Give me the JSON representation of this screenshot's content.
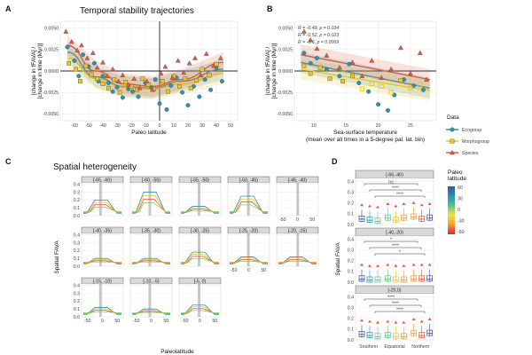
{
  "panels": {
    "a": "A",
    "b": "B",
    "c": "C",
    "d": "D"
  },
  "chart_data": [
    {
      "id": "A",
      "type": "scatter",
      "title": "Temporal stability trajectories",
      "xlabel": "Paleo latitude",
      "ylabel": "[change in fFAVA] /\n[change in time (Myr)]",
      "xlim": [
        -70,
        55
      ],
      "ylim": [
        -0.0058,
        0.0058
      ],
      "xticks": [
        -60,
        -50,
        -40,
        -30,
        -20,
        -10,
        0,
        10,
        20,
        30,
        40,
        50
      ],
      "yticks": [
        -0.005,
        -0.0025,
        0,
        0.0025,
        0.005
      ],
      "ytick_labels": [
        "-0.0050",
        "-0.0025",
        "0.0000",
        "0.0025",
        "0.0050"
      ],
      "series": [
        {
          "name": "Ecogroup",
          "color": "#2a93b0",
          "shape": "circle",
          "points": [
            [
              -65,
              0.0028
            ],
            [
              -60,
              0.0012
            ],
            [
              -57,
              -0.0006
            ],
            [
              -54,
              0.0019
            ],
            [
              -50,
              0.0005
            ],
            [
              -46,
              0.0009
            ],
            [
              -43,
              -0.0012
            ],
            [
              -40,
              -0.0006
            ],
            [
              -36,
              -0.0014
            ],
            [
              -33,
              -0.0024
            ],
            [
              -30,
              -0.0019
            ],
            [
              -26,
              -0.0031
            ],
            [
              -22,
              -0.0021
            ],
            [
              -19,
              -0.0024
            ],
            [
              -15,
              -0.003
            ],
            [
              -10,
              -0.0014
            ],
            [
              -6,
              -0.0019
            ],
            [
              -3,
              -0.001
            ],
            [
              0,
              -0.0038
            ],
            [
              5,
              -0.0045
            ],
            [
              8,
              -0.0017
            ],
            [
              12,
              -0.0008
            ],
            [
              16,
              -0.0025
            ],
            [
              20,
              -0.004
            ],
            [
              24,
              -0.0018
            ],
            [
              28,
              -0.003
            ],
            [
              32,
              -0.001
            ],
            [
              36,
              -0.0022
            ],
            [
              40,
              0.0004
            ],
            [
              44,
              -0.0012
            ]
          ],
          "fit": [
            0.0022,
            -0.0007,
            -0.0018,
            -0.002,
            -0.0012,
            0.0002
          ]
        },
        {
          "name": "Morphogroup",
          "color": "#f0c419",
          "shape": "square",
          "points": [
            [
              -64,
              0.0009
            ],
            [
              -59,
              0.0002
            ],
            [
              -56,
              -0.0012
            ],
            [
              -52,
              0.0006
            ],
            [
              -48,
              -0.0004
            ],
            [
              -44,
              -0.0009
            ],
            [
              -40,
              -0.0015
            ],
            [
              -36,
              -0.002
            ],
            [
              -32,
              -0.001
            ],
            [
              -28,
              -0.0025
            ],
            [
              -24,
              -0.0013
            ],
            [
              -20,
              -0.0018
            ],
            [
              -16,
              -0.0022
            ],
            [
              -12,
              -0.0009
            ],
            [
              -8,
              -0.0016
            ],
            [
              -4,
              -0.0021
            ],
            [
              2,
              -0.0012
            ],
            [
              6,
              -0.0024
            ],
            [
              10,
              -0.0006
            ],
            [
              14,
              -0.0018
            ],
            [
              18,
              -0.0009
            ],
            [
              22,
              -0.002
            ],
            [
              26,
              -0.0011
            ],
            [
              30,
              0.0002
            ],
            [
              35,
              -0.0005
            ],
            [
              40,
              0.0008
            ]
          ],
          "fit": [
            0.0015,
            -0.0009,
            -0.0019,
            -0.0021,
            -0.0015,
            -0.0003
          ]
        },
        {
          "name": "Species",
          "color": "#e05a3c",
          "shape": "triangle",
          "points": [
            [
              -66,
              0.0046
            ],
            [
              -62,
              0.0034
            ],
            [
              -58,
              0.0024
            ],
            [
              -55,
              0.003
            ],
            [
              -51,
              0.0015
            ],
            [
              -47,
              0.0021
            ],
            [
              -44,
              0.0004
            ],
            [
              -40,
              0.001
            ],
            [
              -37,
              -0.0006
            ],
            [
              -33,
              0.0002
            ],
            [
              -29,
              -0.0012
            ],
            [
              -26,
              -0.0005
            ],
            [
              -22,
              -0.0016
            ],
            [
              -18,
              -0.0009
            ],
            [
              -14,
              -0.002
            ],
            [
              -9,
              -0.0012
            ],
            [
              -5,
              -0.0022
            ],
            [
              1,
              -0.0003
            ],
            [
              4,
              0.0005
            ],
            [
              9,
              -0.0008
            ],
            [
              13,
              0.0012
            ],
            [
              17,
              -0.0002
            ],
            [
              21,
              0.0009
            ],
            [
              25,
              0.0015
            ],
            [
              29,
              -0.0005
            ],
            [
              33,
              0.002
            ],
            [
              38,
              0.0006
            ],
            [
              43,
              0.0015
            ]
          ],
          "fit": [
            0.003,
            0.0,
            -0.0015,
            -0.0018,
            -0.001,
            0.001
          ]
        }
      ],
      "fit_x": [
        -65,
        -45,
        -25,
        -5,
        15,
        45
      ]
    },
    {
      "id": "B",
      "type": "scatter",
      "xlabel": "Sea-surface temperature\n(mean over all times in a 5-degree pal. lat. bin)",
      "ylabel": "[change in fFAVA] /\n[change in time (Myr)]",
      "xlim": [
        7,
        29
      ],
      "ylim": [
        -0.0058,
        0.0058
      ],
      "xticks": [
        10,
        15,
        20,
        25
      ],
      "yticks": [
        -0.005,
        -0.0025,
        0,
        0.0025,
        0.005
      ],
      "ytick_labels": [
        "-0.0050",
        "-0.0025",
        "0.0000",
        "0.0025",
        "0.0050"
      ],
      "annotations": [
        {
          "text": "R = -0.49, p = 0.034",
          "color": "#2a93b0"
        },
        {
          "text": "R = -0.52, p = 0.023",
          "color": "#f0c419"
        },
        {
          "text": "R = -0.6, p = 0.0069",
          "color": "#e05a3c"
        }
      ],
      "series": [
        {
          "name": "Ecogroup",
          "color": "#2a93b0",
          "shape": "circle",
          "points": [
            [
              8.5,
              0.0021
            ],
            [
              9.5,
              0.0009
            ],
            [
              10.5,
              0.0015
            ],
            [
              12,
              0.0002
            ],
            [
              14,
              -0.0006
            ],
            [
              15.5,
              0.0008
            ],
            [
              17,
              -0.0014
            ],
            [
              18.5,
              -0.0024
            ],
            [
              20,
              -0.0039
            ],
            [
              21.5,
              -0.0046
            ],
            [
              22.5,
              -0.0028
            ],
            [
              24,
              -0.001
            ],
            [
              25.5,
              -0.0017
            ],
            [
              27,
              -0.0022
            ]
          ],
          "fit": [
            [
              8,
              0.001
            ],
            [
              28,
              -0.002
            ]
          ]
        },
        {
          "name": "Morphogroup",
          "color": "#f0c419",
          "shape": "square",
          "points": [
            [
              8.5,
              0.0006
            ],
            [
              9.5,
              -0.0003
            ],
            [
              11,
              0.0004
            ],
            [
              12.5,
              -0.0009
            ],
            [
              14.5,
              -0.0012
            ],
            [
              16,
              -0.0006
            ],
            [
              17.5,
              -0.0021
            ],
            [
              19,
              -0.0015
            ],
            [
              20.5,
              -0.0018
            ],
            [
              22,
              -0.0025
            ],
            [
              23.5,
              -0.0011
            ],
            [
              25,
              -0.002
            ],
            [
              26.5,
              -0.0016
            ]
          ],
          "fit": [
            [
              8,
              0.0002
            ],
            [
              28,
              -0.0023
            ]
          ]
        },
        {
          "name": "Species",
          "color": "#e05a3c",
          "shape": "triangle",
          "points": [
            [
              8.5,
              0.0046
            ],
            [
              9.5,
              0.0036
            ],
            [
              10.5,
              0.0026
            ],
            [
              12,
              0.0018
            ],
            [
              14,
              0.0004
            ],
            [
              16,
              0.001
            ],
            [
              17.5,
              -0.0006
            ],
            [
              19,
              0.0012
            ],
            [
              20.5,
              -0.0008
            ],
            [
              22,
              0.0002
            ],
            [
              23.5,
              0.0027
            ],
            [
              25,
              -0.0003
            ],
            [
              26.5,
              0.0021
            ],
            [
              27.5,
              -0.001
            ]
          ],
          "fit": [
            [
              8,
              0.0019
            ],
            [
              28,
              -0.001
            ]
          ]
        }
      ]
    },
    {
      "id": "C",
      "type": "line",
      "title": "Spatial heterogeneity",
      "xlabel": "Paleolatitude",
      "ylabel": "Spatial FAVA",
      "ylim": [
        0,
        0.4
      ],
      "yticks": [
        0.0,
        0.1,
        0.2,
        0.3,
        0.4
      ],
      "ytick_labels": [
        "0.0",
        "0.1",
        "0.2",
        "0.3",
        "0.4"
      ],
      "xticks": [
        -50,
        0,
        50
      ],
      "xtick_labels": [
        "-50",
        "0",
        "50"
      ],
      "facets": [
        "[-65, -60)",
        "[-60, -55)",
        "[-55, -50)",
        "[-50, -45)",
        "[-45, -40)",
        "[-40, -35)",
        "[-35, -30)",
        "[-30, -25)",
        "[-25, -20)",
        "[-20, -15)",
        "[-15, -10)",
        "[-10, -5)",
        "[-5, 0)"
      ],
      "facet_peaks": [
        0.2,
        0.3,
        0.12,
        0.25,
        0.0,
        0.1,
        0.1,
        0.18,
        0.12,
        0.12,
        0.12,
        0.1,
        0.15
      ]
    },
    {
      "id": "D",
      "type": "box",
      "xlabel": "",
      "ylabel": "Spatial FAVA",
      "categories": [
        "Southern",
        "Equatorial",
        "Northern"
      ],
      "ylim": [
        0,
        0.4
      ],
      "yticks": [
        0.0,
        0.1,
        0.2,
        0.3,
        0.4
      ],
      "ytick_labels": [
        "0.0",
        "0.1",
        "0.2",
        "0.3",
        "0.4"
      ],
      "facets": [
        {
          "label": "[-66,-40)",
          "sig": [
            "ns",
            "****",
            "****"
          ]
        },
        {
          "label": "[-40,-20)",
          "sig": [
            "*",
            "****",
            "*"
          ]
        },
        {
          "label": "[-20,0)",
          "sig": [
            "****",
            "****",
            "****"
          ]
        }
      ],
      "medians": [
        [
          [
            0.05,
            0.04,
            0.03
          ],
          [
            0.06,
            0.04,
            0.06
          ],
          [
            0.07,
            0.05,
            0.06
          ]
        ],
        [
          [
            0.03,
            0.02,
            0.02
          ],
          [
            0.03,
            0.02,
            0.02
          ],
          [
            0.03,
            0.03,
            0.03
          ]
        ],
        [
          [
            0.05,
            0.04,
            0.03
          ],
          [
            0.04,
            0.03,
            0.03
          ],
          [
            0.06,
            0.04,
            0.06
          ]
        ]
      ]
    }
  ],
  "legend_data": {
    "title": "Data",
    "items": [
      {
        "label": "Ecogroup",
        "color": "#2a93b0",
        "shape": "circle"
      },
      {
        "label": "Morphogroup",
        "color": "#f0c419",
        "shape": "square"
      },
      {
        "label": "Species",
        "color": "#e05a3c",
        "shape": "triangle"
      }
    ]
  },
  "legend_lat": {
    "title": "Paleo\nlatitude",
    "ticks": [
      "60",
      "30",
      "0",
      "-30",
      "-60"
    ]
  }
}
